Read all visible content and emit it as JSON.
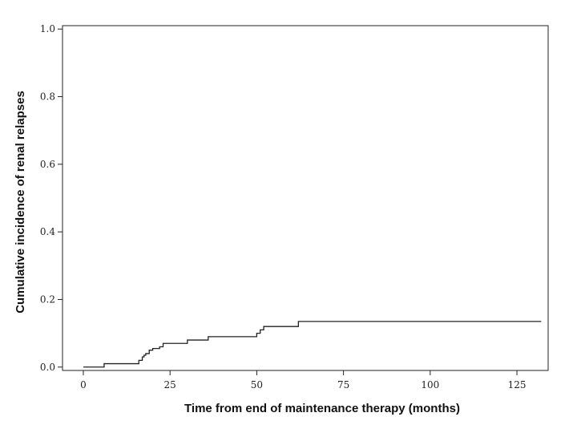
{
  "chart_data": {
    "type": "line",
    "step": true,
    "title": "",
    "xlabel": "Time from end of maintenance therapy (months)",
    "ylabel": "Cumulative incidence of renal relapses",
    "xlim": [
      -6,
      134
    ],
    "ylim": [
      -0.01,
      1.01
    ],
    "xticks": [
      0,
      25,
      50,
      75,
      100,
      125
    ],
    "xtick_labels": [
      "0",
      "25",
      "50",
      "75",
      "100",
      "125"
    ],
    "yticks": [
      0.0,
      0.2,
      0.4,
      0.6,
      0.8,
      1.0
    ],
    "ytick_labels": [
      "0.0",
      "0.2",
      "0.4",
      "0.6",
      "0.8",
      "1.0"
    ],
    "grid": false,
    "series": [
      {
        "x": [
          0,
          6,
          16,
          17,
          17.5,
          18,
          19,
          20,
          22,
          23,
          30,
          36,
          50,
          51,
          52,
          62,
          132
        ],
        "y": [
          0.0,
          0.01,
          0.02,
          0.03,
          0.035,
          0.04,
          0.05,
          0.055,
          0.06,
          0.07,
          0.08,
          0.09,
          0.1,
          0.11,
          0.12,
          0.135,
          0.135
        ]
      }
    ]
  }
}
